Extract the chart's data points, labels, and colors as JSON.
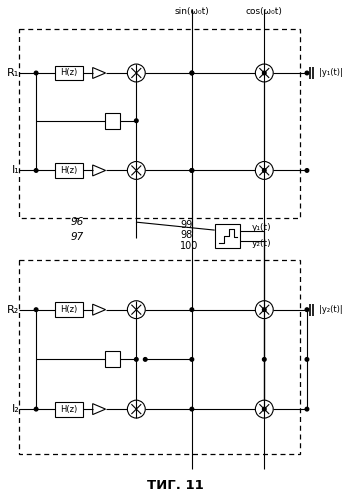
{
  "title": "ΤИГ. 11",
  "bg_color": "#ffffff",
  "sin_label": "sin(ω₀t)",
  "cos_label": "cos(ω₀t)",
  "R1": "R₁",
  "I1": "I₁",
  "R2": "R₂",
  "I2": "I₂",
  "Hz": "H(z)",
  "IY1_label": "|y₁(t)|",
  "IY2_label": "|y₂(t)|",
  "lbl_96": "96",
  "lbl_97": "97",
  "lbl_99": "99",
  "lbl_98": "98",
  "lbl_100": "100",
  "y1t": "y₁(t)",
  "y2t": "y₂(t)"
}
